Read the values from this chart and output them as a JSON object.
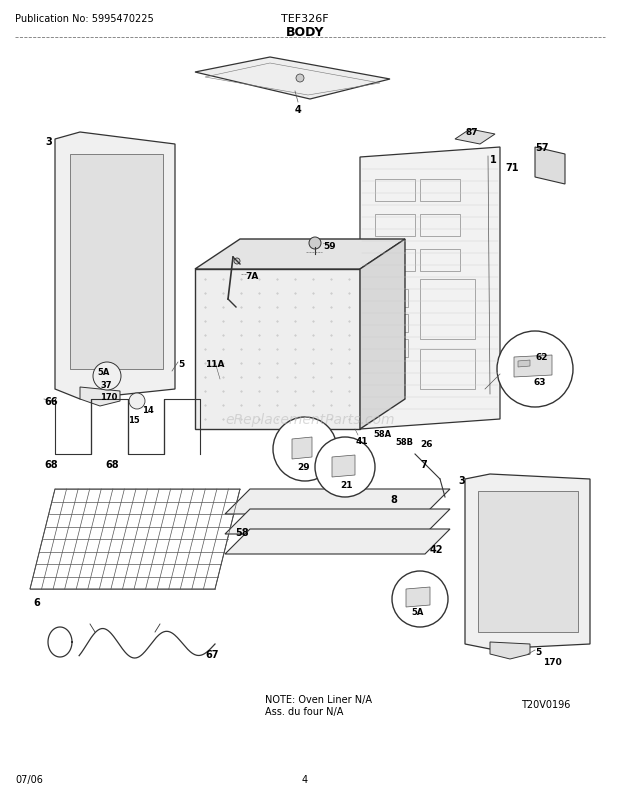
{
  "title_center": "TEF326F",
  "title_sub": "BODY",
  "pub_no": "Publication No: 5995470225",
  "date": "07/06",
  "page": "4",
  "ref_no": "T20V0196",
  "note_line1": "NOTE: Oven Liner N/A",
  "note_line2": "Ass. du four N/A",
  "bg_color": "#ffffff",
  "line_color": "#333333",
  "text_color": "#000000",
  "watermark": "eReplacementParts.com",
  "watermark_color": "#bbbbbb"
}
